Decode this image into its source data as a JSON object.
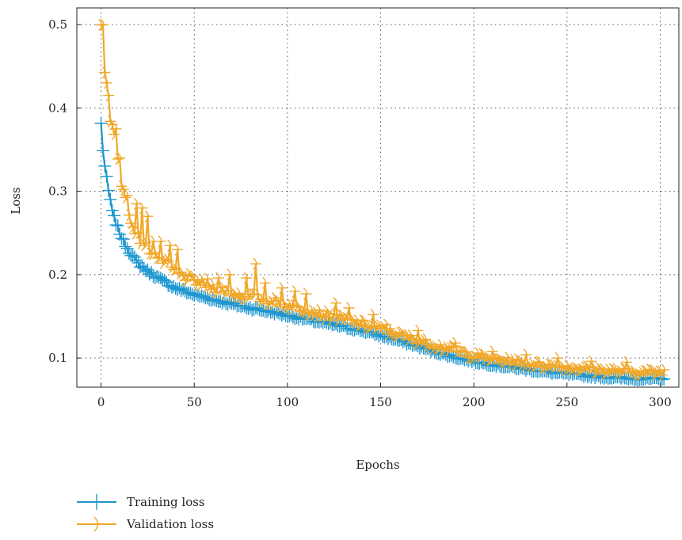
{
  "chart_data": {
    "type": "line",
    "xlabel": "Epochs",
    "ylabel": "Loss",
    "xlim": [
      -13,
      310
    ],
    "ylim": [
      0.065,
      0.52
    ],
    "xticks": [
      0,
      50,
      100,
      150,
      200,
      250,
      300
    ],
    "yticks": [
      0.1,
      0.2,
      0.3,
      0.4,
      0.5
    ],
    "xtick_labels": [
      "0",
      "50",
      "100",
      "150",
      "200",
      "250",
      "300"
    ],
    "ytick_labels": [
      "0.1",
      "0.2",
      "0.3",
      "0.4",
      "0.5"
    ],
    "grid": true,
    "grid_style": "dotted",
    "legend_position": "below-left",
    "epochs": 302,
    "series": [
      {
        "name": "Training loss",
        "color": "#1f97cf",
        "marker": "plus",
        "anchors": [
          [
            0,
            0.381
          ],
          [
            1,
            0.35
          ],
          [
            2,
            0.33
          ],
          [
            3,
            0.315
          ],
          [
            4,
            0.3
          ],
          [
            5,
            0.29
          ],
          [
            6,
            0.275
          ],
          [
            8,
            0.262
          ],
          [
            10,
            0.25
          ],
          [
            12,
            0.24
          ],
          [
            15,
            0.228
          ],
          [
            20,
            0.213
          ],
          [
            25,
            0.204
          ],
          [
            30,
            0.197
          ],
          [
            35,
            0.19
          ],
          [
            40,
            0.184
          ],
          [
            50,
            0.176
          ],
          [
            60,
            0.17
          ],
          [
            70,
            0.165
          ],
          [
            80,
            0.16
          ],
          [
            90,
            0.156
          ],
          [
            100,
            0.151
          ],
          [
            120,
            0.142
          ],
          [
            140,
            0.133
          ],
          [
            150,
            0.127
          ],
          [
            160,
            0.121
          ],
          [
            170,
            0.114
          ],
          [
            180,
            0.107
          ],
          [
            190,
            0.101
          ],
          [
            200,
            0.096
          ],
          [
            210,
            0.092
          ],
          [
            220,
            0.089
          ],
          [
            230,
            0.086
          ],
          [
            240,
            0.083
          ],
          [
            250,
            0.081
          ],
          [
            260,
            0.079
          ],
          [
            270,
            0.077
          ],
          [
            280,
            0.076
          ],
          [
            290,
            0.075
          ],
          [
            300,
            0.075
          ],
          [
            302,
            0.076
          ]
        ]
      },
      {
        "name": "Validation loss",
        "color": "#f0a82a",
        "marker": "arc",
        "anchors": [
          [
            0,
            0.5
          ],
          [
            1,
            0.49
          ],
          [
            2,
            0.44
          ],
          [
            3,
            0.42
          ],
          [
            4,
            0.4
          ],
          [
            5,
            0.38
          ],
          [
            6,
            0.37
          ],
          [
            8,
            0.36
          ],
          [
            10,
            0.32
          ],
          [
            12,
            0.3
          ],
          [
            15,
            0.27
          ],
          [
            20,
            0.245
          ],
          [
            25,
            0.232
          ],
          [
            30,
            0.222
          ],
          [
            35,
            0.213
          ],
          [
            40,
            0.203
          ],
          [
            50,
            0.192
          ],
          [
            60,
            0.185
          ],
          [
            70,
            0.178
          ],
          [
            80,
            0.173
          ],
          [
            90,
            0.169
          ],
          [
            100,
            0.164
          ],
          [
            120,
            0.152
          ],
          [
            140,
            0.141
          ],
          [
            150,
            0.135
          ],
          [
            160,
            0.128
          ],
          [
            170,
            0.121
          ],
          [
            180,
            0.115
          ],
          [
            190,
            0.109
          ],
          [
            200,
            0.103
          ],
          [
            210,
            0.099
          ],
          [
            220,
            0.096
          ],
          [
            230,
            0.093
          ],
          [
            240,
            0.091
          ],
          [
            250,
            0.089
          ],
          [
            260,
            0.087
          ],
          [
            270,
            0.085
          ],
          [
            280,
            0.084
          ],
          [
            290,
            0.083
          ],
          [
            300,
            0.083
          ],
          [
            302,
            0.084
          ]
        ],
        "spikes": [
          [
            1,
            0.5
          ],
          [
            3,
            0.43
          ],
          [
            4,
            0.415
          ],
          [
            6,
            0.38
          ],
          [
            8,
            0.375
          ],
          [
            10,
            0.34
          ],
          [
            14,
            0.295
          ],
          [
            19,
            0.285
          ],
          [
            22,
            0.28
          ],
          [
            25,
            0.27
          ],
          [
            28,
            0.24
          ],
          [
            32,
            0.24
          ],
          [
            37,
            0.235
          ],
          [
            41,
            0.23
          ],
          [
            57,
            0.195
          ],
          [
            63,
            0.196
          ],
          [
            69,
            0.2
          ],
          [
            78,
            0.196
          ],
          [
            83,
            0.213
          ],
          [
            88,
            0.19
          ],
          [
            97,
            0.184
          ],
          [
            104,
            0.18
          ],
          [
            110,
            0.177
          ],
          [
            126,
            0.166
          ],
          [
            133,
            0.16
          ],
          [
            146,
            0.152
          ],
          [
            153,
            0.14
          ],
          [
            170,
            0.133
          ],
          [
            190,
            0.118
          ],
          [
            210,
            0.108
          ],
          [
            228,
            0.104
          ],
          [
            245,
            0.1
          ],
          [
            263,
            0.096
          ],
          [
            282,
            0.095
          ]
        ]
      }
    ]
  }
}
